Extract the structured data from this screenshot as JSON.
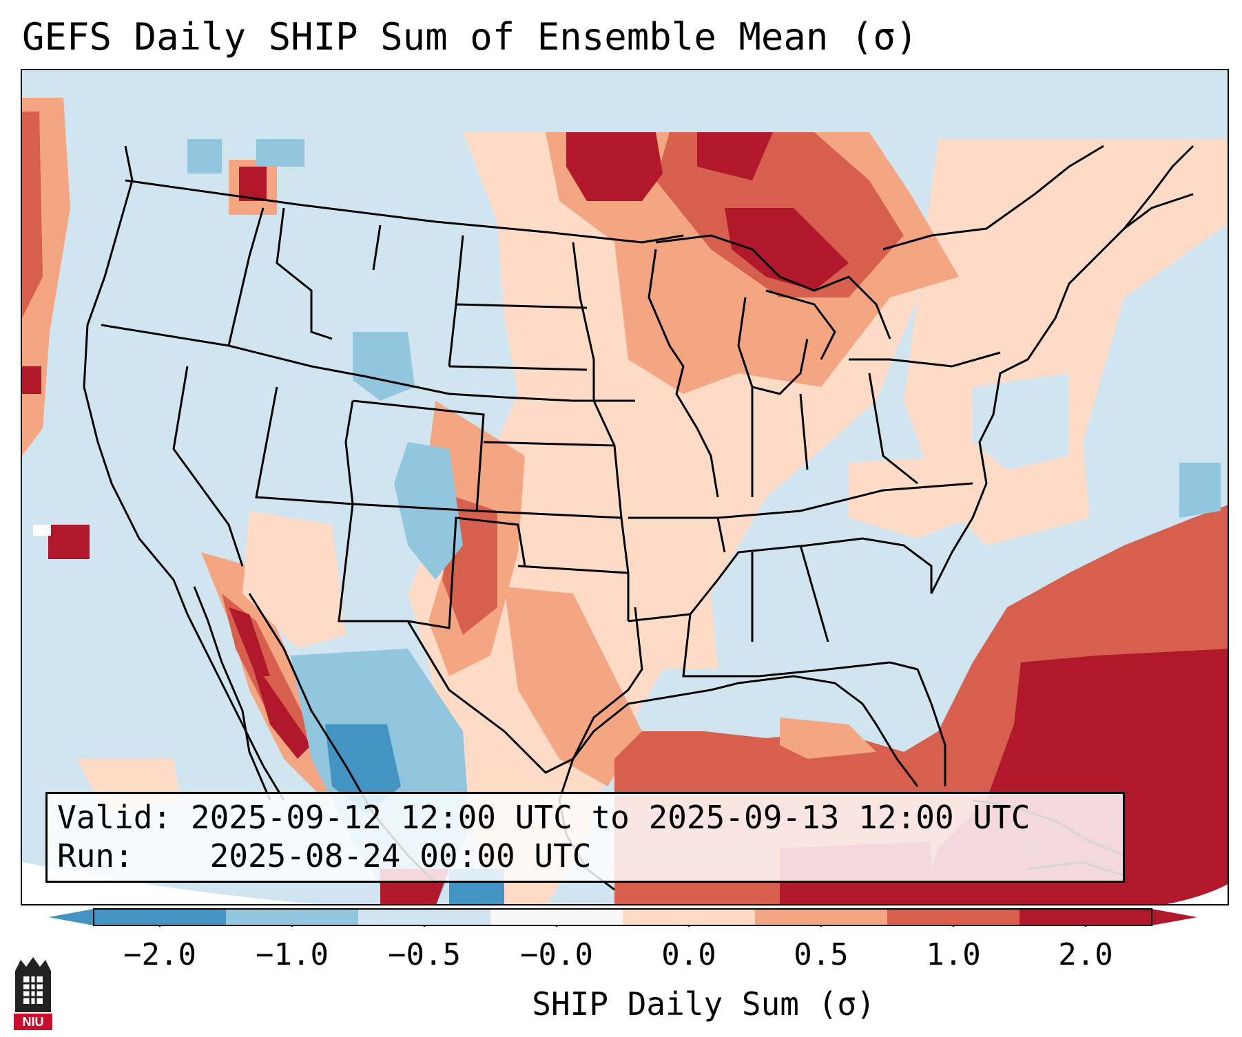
{
  "title": "GEFS Daily SHIP Sum of Ensemble Mean (σ)",
  "info": {
    "valid_label": "Valid:",
    "valid_value": "2025-09-12 12:00 UTC to 2025-09-13 12:00 UTC",
    "run_label": "Run:",
    "run_value": "2025-08-24 00:00 UTC"
  },
  "colorbar": {
    "label": "SHIP Daily Sum (σ)",
    "ticks": [
      "−2.0",
      "−1.0",
      "−0.5",
      "−0.0",
      "0.0",
      "0.5",
      "1.0",
      "2.0"
    ],
    "colors": [
      "#4393c3",
      "#92c5de",
      "#d1e5f0",
      "#f7f7f7",
      "#fddbc7",
      "#f4a582",
      "#d6604d",
      "#b2182b"
    ],
    "extend_low": "#2166ac",
    "extend_high": "#67001f"
  },
  "logo": {
    "text": "NIU",
    "name": "Northern Illinois University"
  },
  "map_regions": [
    {
      "region": "Upper Midwest / Great Lakes / Ontario",
      "level": 2.0
    },
    {
      "region": "Gulf of Mexico and western Atlantic",
      "level": 1.0
    },
    {
      "region": "Central and Southern Plains",
      "level": 0.5
    },
    {
      "region": "Southeast US",
      "level": 0.0
    },
    {
      "region": "Southern Rockies / Colorado",
      "level": -1.0
    },
    {
      "region": "Northwest Mexico / Sierra Madre",
      "level": -1.0
    },
    {
      "region": "Western US",
      "level": -0.5
    }
  ]
}
